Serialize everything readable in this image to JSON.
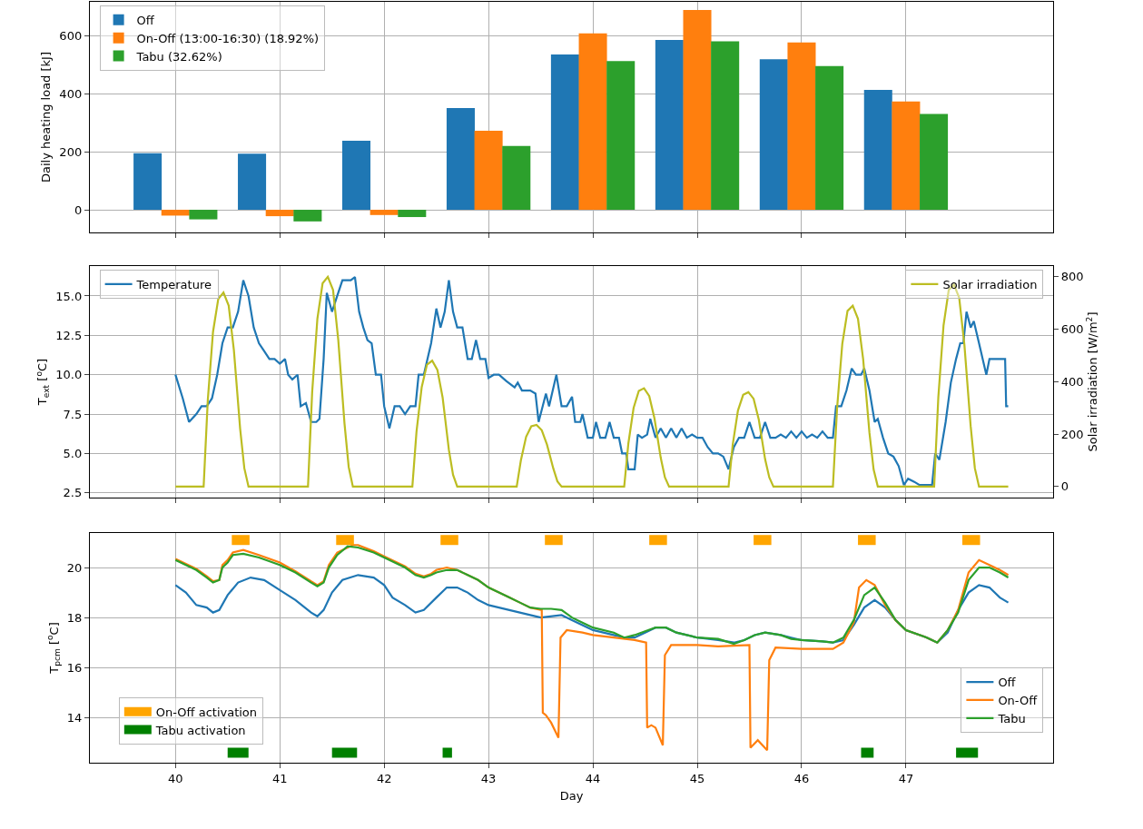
{
  "chart_data": [
    {
      "type": "bar",
      "x": [
        40,
        41,
        42,
        43,
        44,
        45,
        46,
        47
      ],
      "xlim": [
        39.18,
        48.41
      ],
      "xticks": [
        40,
        41,
        42,
        43,
        44,
        45,
        46,
        47
      ],
      "tick_labels": "y",
      "ylabel": "Daily heating load [kJ]",
      "ylim": [
        -78,
        716
      ],
      "yticks": [
        0,
        200,
        400,
        600
      ],
      "grid": true,
      "legend": "top left",
      "series": [
        {
          "name": "Off",
          "color": "#1f77b4",
          "values": [
            195,
            193,
            238,
            350,
            535,
            585,
            518,
            413
          ]
        },
        {
          "name": "On-Off (13:00-16:30) (18.92%)",
          "color": "#ff7f0e",
          "values": [
            -20,
            -22,
            -18,
            272,
            607,
            688,
            576,
            373
          ]
        },
        {
          "name": "Tabu (32.62%)",
          "color": "#2ca02c",
          "values": [
            -33,
            -40,
            -25,
            220,
            512,
            580,
            495,
            330
          ]
        }
      ]
    },
    {
      "type": "line",
      "xlim": [
        39.18,
        48.41
      ],
      "xticks": [
        40,
        41,
        42,
        43,
        44,
        45,
        46,
        47
      ],
      "tick_labels": "y",
      "ylabel": "T$_{ext}$ [$^{o}$C]",
      "y2label": "Solar irradiation [W/m$^{2}$]",
      "ylim": [
        2.2,
        16.9
      ],
      "yticks": [
        {
          "value": 2.5,
          "label": "2.5"
        },
        {
          "value": 5,
          "label": "5.0"
        },
        {
          "value": 7.5,
          "label": "7.5"
        },
        {
          "value": 10,
          "label": "10.0"
        },
        {
          "value": 12.5,
          "label": "12.5"
        },
        {
          "value": 15,
          "label": "15.0"
        }
      ],
      "y2lim": [
        -42,
        841
      ],
      "y2ticks": [
        0,
        200,
        400,
        600,
        800
      ],
      "grid": true,
      "legend": "top left",
      "marker": "none",
      "series": [
        {
          "name": "Temperature",
          "color": "#1f77b4",
          "x": [
            40,
            40.07,
            40.13,
            40.2,
            40.25,
            40.3,
            40.35,
            40.4,
            40.45,
            40.5,
            40.55,
            40.6,
            40.65,
            40.7,
            40.75,
            40.8,
            40.85,
            40.9,
            40.95,
            41,
            41.05,
            41.08,
            41.12,
            41.17,
            41.2,
            41.25,
            41.3,
            41.35,
            41.38,
            41.42,
            41.45,
            41.5,
            41.55,
            41.6,
            41.68,
            41.72,
            41.76,
            41.8,
            41.84,
            41.88,
            41.92,
            41.97,
            42,
            42.05,
            42.1,
            42.15,
            42.2,
            42.25,
            42.3,
            42.33,
            42.38,
            42.45,
            42.5,
            42.54,
            42.58,
            42.62,
            42.66,
            42.7,
            42.75,
            42.8,
            42.84,
            42.88,
            42.92,
            42.97,
            43,
            43.05,
            43.1,
            43.17,
            43.25,
            43.28,
            43.32,
            43.4,
            43.45,
            43.48,
            43.55,
            43.58,
            43.65,
            43.7,
            43.75,
            43.8,
            43.83,
            43.88,
            43.9,
            43.95,
            44,
            44.03,
            44.07,
            44.12,
            44.16,
            44.2,
            44.25,
            44.28,
            44.32,
            44.34,
            44.4,
            44.43,
            44.47,
            44.52,
            44.55,
            44.6,
            44.65,
            44.7,
            44.75,
            44.8,
            44.85,
            44.9,
            44.95,
            45,
            45.05,
            45.1,
            45.15,
            45.2,
            45.25,
            45.3,
            45.35,
            45.4,
            45.45,
            45.5,
            45.55,
            45.6,
            45.65,
            45.7,
            45.75,
            45.8,
            45.85,
            45.9,
            45.95,
            46,
            46.05,
            46.1,
            46.15,
            46.2,
            46.25,
            46.3,
            46.33,
            46.38,
            46.43,
            46.48,
            46.52,
            46.57,
            46.6,
            46.65,
            46.7,
            46.73,
            46.78,
            46.83,
            46.88,
            46.93,
            46.98,
            47.02,
            47.08,
            47.13,
            47.2,
            47.25,
            47.28,
            47.32,
            47.38,
            47.43,
            47.48,
            47.52,
            47.55,
            47.58,
            47.62,
            47.65,
            47.7,
            47.77,
            47.8,
            47.88,
            47.95,
            47.96,
            47.98
          ],
          "values": [
            10,
            8.5,
            7,
            7.5,
            8,
            8,
            8.5,
            10,
            12,
            13,
            13,
            14,
            16,
            15,
            13,
            12,
            11.5,
            11,
            11,
            10.7,
            11,
            10,
            9.7,
            10,
            8,
            8.2,
            7,
            7,
            7.2,
            11,
            15.2,
            14,
            15,
            16,
            16,
            16.2,
            14,
            13,
            12.2,
            12,
            10,
            10,
            8,
            6.6,
            8,
            8,
            7.5,
            8,
            8,
            10,
            10,
            12,
            14.2,
            13,
            14,
            16,
            14,
            13,
            13,
            11,
            11,
            12.2,
            11,
            11,
            9.8,
            10,
            10,
            9.6,
            9.2,
            9.5,
            9,
            9,
            8.8,
            7,
            8.8,
            8,
            10,
            8,
            8,
            8.6,
            7,
            7,
            7.5,
            6,
            6,
            7,
            6,
            6,
            7,
            6,
            6,
            5,
            5,
            4,
            4,
            6.2,
            6,
            6.2,
            7.2,
            6,
            6.6,
            6,
            6.6,
            6,
            6.6,
            6,
            6.2,
            6,
            6,
            5.4,
            5,
            5,
            4.8,
            4,
            5.4,
            6,
            6,
            7,
            6,
            6,
            7,
            6,
            6,
            6.2,
            6,
            6.4,
            6,
            6.4,
            6,
            6.2,
            6,
            6.4,
            6,
            6,
            8,
            8,
            9,
            10.4,
            10,
            10,
            10.4,
            9,
            7,
            7.2,
            6,
            5,
            4.8,
            4.2,
            3,
            3.4,
            3.2,
            3,
            3,
            3,
            5,
            4.6,
            7,
            9.5,
            11,
            12,
            12,
            14,
            13,
            13.4,
            12,
            10,
            11,
            11,
            11,
            8,
            8
          ]
        },
        {
          "name": "Solar irradiation",
          "color": "#bcbd22",
          "axis": "y2",
          "x": [
            40,
            40.27,
            40.31,
            40.36,
            40.41,
            40.46,
            40.51,
            40.56,
            40.62,
            40.66,
            40.7,
            41.27,
            41.31,
            41.36,
            41.41,
            41.46,
            41.51,
            41.56,
            41.62,
            41.66,
            41.7,
            42.27,
            42.31,
            42.36,
            42.41,
            42.46,
            42.51,
            42.56,
            42.62,
            42.66,
            42.7,
            43.27,
            43.31,
            43.36,
            43.41,
            43.46,
            43.51,
            43.56,
            43.62,
            43.66,
            43.7,
            44.3,
            44.34,
            44.39,
            44.44,
            44.49,
            44.54,
            44.59,
            44.65,
            44.69,
            44.73,
            45.3,
            45.34,
            45.39,
            45.44,
            45.49,
            45.54,
            45.59,
            45.65,
            45.69,
            45.73,
            46.3,
            46.34,
            46.39,
            46.44,
            46.49,
            46.54,
            46.59,
            46.65,
            46.69,
            46.73,
            47.27,
            47.31,
            47.36,
            47.41,
            47.46,
            47.51,
            47.56,
            47.62,
            47.66,
            47.7,
            47.98
          ],
          "values": [
            0,
            0,
            330,
            590,
            715,
            740,
            690,
            520,
            220,
            70,
            0,
            0,
            360,
            640,
            775,
            800,
            750,
            560,
            240,
            75,
            0,
            0,
            210,
            380,
            465,
            480,
            445,
            340,
            140,
            45,
            0,
            0,
            100,
            190,
            230,
            235,
            215,
            160,
            70,
            20,
            0,
            0,
            165,
            300,
            365,
            375,
            345,
            260,
            110,
            35,
            0,
            0,
            160,
            290,
            350,
            360,
            335,
            255,
            105,
            35,
            0,
            0,
            300,
            545,
            670,
            690,
            640,
            485,
            205,
            65,
            0,
            0,
            340,
            615,
            750,
            770,
            720,
            540,
            230,
            70,
            0,
            0
          ]
        }
      ]
    },
    {
      "type": "line",
      "xlim": [
        39.18,
        48.41
      ],
      "xticks": [
        40,
        41,
        42,
        43,
        44,
        45,
        46,
        47
      ],
      "xlabel": "Day",
      "ylabel": "T$_{pcm}$ [$^{o}$C]",
      "ylim": [
        12.2,
        21.38
      ],
      "yticks": [
        14,
        16,
        18,
        20
      ],
      "grid": true,
      "legend": "bottom right",
      "marker": "none",
      "series": [
        {
          "name": "Off",
          "color": "#1f77b4",
          "x": [
            40,
            40.1,
            40.2,
            40.3,
            40.36,
            40.42,
            40.5,
            40.6,
            40.72,
            40.85,
            41,
            41.15,
            41.3,
            41.36,
            41.42,
            41.5,
            41.6,
            41.75,
            41.9,
            42,
            42.08,
            42.2,
            42.3,
            42.38,
            42.5,
            42.6,
            42.7,
            42.8,
            42.9,
            43,
            43.2,
            43.3,
            43.4,
            43.5,
            43.7,
            43.8,
            43.9,
            44,
            44.2,
            44.3,
            44.4,
            44.5,
            44.6,
            44.7,
            44.8,
            44.9,
            45,
            45.2,
            45.35,
            45.45,
            45.55,
            45.65,
            45.8,
            45.9,
            46,
            46.2,
            46.3,
            46.4,
            46.5,
            46.6,
            46.7,
            46.8,
            46.9,
            47,
            47.2,
            47.3,
            47.4,
            47.5,
            47.6,
            47.7,
            47.8,
            47.9,
            47.98
          ],
          "values": [
            19.3,
            19,
            18.5,
            18.4,
            18.2,
            18.3,
            18.9,
            19.4,
            19.6,
            19.5,
            19.1,
            18.7,
            18.2,
            18.05,
            18.3,
            19,
            19.5,
            19.7,
            19.6,
            19.3,
            18.8,
            18.5,
            18.2,
            18.3,
            18.8,
            19.2,
            19.2,
            19,
            18.7,
            18.5,
            18.3,
            18.2,
            18.1,
            18,
            18.1,
            17.9,
            17.7,
            17.5,
            17.3,
            17.2,
            17.2,
            17.4,
            17.6,
            17.6,
            17.4,
            17.3,
            17.2,
            17.1,
            17,
            17.1,
            17.3,
            17.4,
            17.3,
            17.2,
            17.1,
            17.05,
            17,
            17.1,
            17.7,
            18.4,
            18.7,
            18.4,
            17.9,
            17.5,
            17.2,
            17,
            17.4,
            18.3,
            19,
            19.3,
            19.2,
            18.8,
            18.6
          ]
        },
        {
          "name": "On-Off",
          "color": "#ff7f0e",
          "x": [
            40,
            40.1,
            40.2,
            40.3,
            40.36,
            40.42,
            40.45,
            40.5,
            40.55,
            40.65,
            40.8,
            41,
            41.15,
            41.3,
            41.36,
            41.42,
            41.47,
            41.55,
            41.7,
            41.75,
            41.9,
            42,
            42.2,
            42.3,
            42.38,
            42.45,
            42.5,
            42.6,
            42.7,
            42.8,
            42.9,
            43,
            43.2,
            43.3,
            43.4,
            43.51,
            43.52,
            43.55,
            43.6,
            43.67,
            43.69,
            43.75,
            43.9,
            44,
            44.2,
            44.4,
            44.51,
            44.52,
            44.56,
            44.6,
            44.67,
            44.69,
            44.75,
            45,
            45.2,
            45.5,
            45.51,
            45.58,
            45.67,
            45.69,
            45.75,
            46,
            46.3,
            46.4,
            46.5,
            46.55,
            46.62,
            46.7,
            46.8,
            46.9,
            47,
            47.2,
            47.3,
            47.4,
            47.5,
            47.6,
            47.7,
            47.8,
            47.9,
            47.98
          ],
          "values": [
            20.35,
            20.15,
            19.95,
            19.65,
            19.45,
            19.5,
            20.1,
            20.3,
            20.6,
            20.7,
            20.5,
            20.2,
            19.85,
            19.45,
            19.3,
            19.45,
            20.1,
            20.6,
            20.9,
            20.9,
            20.65,
            20.45,
            20.05,
            19.75,
            19.65,
            19.75,
            19.9,
            20,
            19.9,
            19.7,
            19.5,
            19.2,
            18.8,
            18.6,
            18.4,
            18.3,
            14.2,
            14.1,
            13.8,
            13.2,
            17.2,
            17.5,
            17.4,
            17.3,
            17.2,
            17.1,
            17,
            13.6,
            13.7,
            13.6,
            12.9,
            16.5,
            16.9,
            16.9,
            16.85,
            16.9,
            12.8,
            13.1,
            12.7,
            16.3,
            16.8,
            16.75,
            16.75,
            17,
            17.8,
            19.2,
            19.5,
            19.3,
            18.5,
            17.9,
            17.5,
            17.2,
            17,
            17.5,
            18.3,
            19.8,
            20.3,
            20.1,
            19.9,
            19.7
          ]
        },
        {
          "name": "Tabu",
          "color": "#2ca02c",
          "x": [
            40,
            40.1,
            40.2,
            40.3,
            40.36,
            40.42,
            40.45,
            40.5,
            40.55,
            40.65,
            40.8,
            41,
            41.15,
            41.3,
            41.36,
            41.42,
            41.47,
            41.55,
            41.65,
            41.75,
            41.9,
            42,
            42.2,
            42.3,
            42.38,
            42.45,
            42.5,
            42.6,
            42.7,
            42.8,
            42.9,
            43,
            43.2,
            43.3,
            43.4,
            43.5,
            43.6,
            43.7,
            43.8,
            43.9,
            44,
            44.2,
            44.3,
            44.4,
            44.5,
            44.6,
            44.7,
            44.8,
            44.9,
            45,
            45.2,
            45.35,
            45.45,
            45.55,
            45.65,
            45.8,
            45.9,
            46,
            46.2,
            46.3,
            46.4,
            46.5,
            46.6,
            46.7,
            46.8,
            46.9,
            47,
            47.2,
            47.3,
            47.4,
            47.5,
            47.6,
            47.7,
            47.8,
            47.9,
            47.98
          ],
          "values": [
            20.3,
            20.1,
            19.9,
            19.6,
            19.4,
            19.5,
            20,
            20.2,
            20.5,
            20.55,
            20.4,
            20.1,
            19.8,
            19.4,
            19.25,
            19.4,
            20,
            20.5,
            20.85,
            20.8,
            20.6,
            20.4,
            20,
            19.7,
            19.6,
            19.7,
            19.8,
            19.9,
            19.9,
            19.7,
            19.5,
            19.2,
            18.8,
            18.6,
            18.4,
            18.35,
            18.35,
            18.3,
            18,
            17.8,
            17.6,
            17.4,
            17.2,
            17.3,
            17.45,
            17.6,
            17.6,
            17.4,
            17.3,
            17.2,
            17.15,
            16.95,
            17.1,
            17.3,
            17.4,
            17.3,
            17.15,
            17.1,
            17.05,
            17,
            17.2,
            17.9,
            18.9,
            19.2,
            18.6,
            17.9,
            17.5,
            17.2,
            17,
            17.5,
            18.2,
            19.5,
            20,
            20,
            19.8,
            19.6
          ]
        },
        {
          "name": "On-Off activation",
          "type": "step",
          "color": "#ffa500",
          "x": [
            40.54,
            40.71,
            41,
            41.54,
            41.71,
            42,
            42.54,
            42.71,
            43,
            43.54,
            43.71,
            44,
            44.54,
            44.71,
            45,
            45.54,
            45.71,
            46,
            46.54,
            46.71,
            47,
            47.54,
            47.71
          ],
          "values": [
            21.1,
            21.1,
            null,
            21.1,
            21.1,
            null,
            21.1,
            21.1,
            null,
            21.1,
            21.1,
            null,
            21.1,
            21.1,
            null,
            21.1,
            21.1,
            null,
            21.1,
            21.1,
            null,
            21.1,
            21.1
          ]
        },
        {
          "name": "Tabu activation",
          "type": "step",
          "color": "#008000",
          "x": [
            40.5,
            40.7,
            41,
            41.5,
            41.74,
            42,
            42.56,
            42.65,
            44,
            46.57,
            46.69,
            47,
            47.48,
            47.69
          ],
          "values": [
            12.6,
            12.6,
            null,
            12.6,
            12.6,
            null,
            12.6,
            12.6,
            null,
            12.6,
            12.6,
            null,
            12.6,
            12.6
          ]
        }
      ]
    }
  ]
}
